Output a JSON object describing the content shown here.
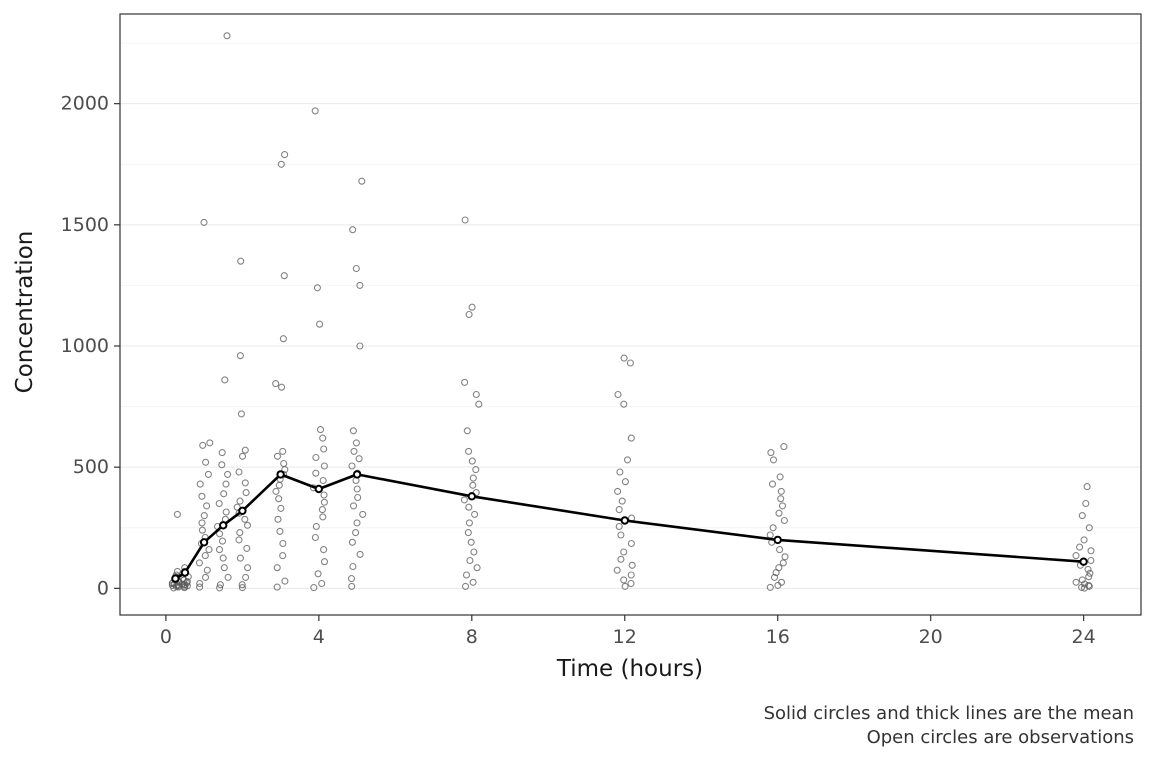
{
  "figure": {
    "y_axis_title": "Concentration",
    "x_axis_title": "Time (hours)",
    "caption_line1": "Solid circles and thick lines are the mean",
    "caption_line2": "Open circles are observations"
  },
  "chart_data": {
    "type": "scatter",
    "title": "",
    "xlabel": "Time (hours)",
    "ylabel": "Concentration",
    "xlim": [
      -1.2,
      25.5
    ],
    "ylim": [
      -110,
      2370
    ],
    "x_ticks": [
      0,
      4,
      8,
      12,
      16,
      20,
      24
    ],
    "y_ticks": [
      0,
      500,
      1000,
      1500,
      2000
    ],
    "grid": "horizontal major and minor, no vertical",
    "legend_position": "caption bottom-right",
    "annotations": [
      "Solid circles and thick lines are the mean",
      "Open circles are observations"
    ],
    "colors": {
      "mean_line": "#000000",
      "mean_marker_fill": "#ffffff",
      "observation_stroke": "#595959",
      "gridline_major": "#e9e9e9",
      "gridline_minor": "#f4f4f4",
      "panel_border": "#333333",
      "tick_mark": "#333333",
      "tick_label": "#4d4d4d"
    },
    "mean_series": {
      "name": "mean",
      "x": [
        0.25,
        0.5,
        1,
        1.5,
        2,
        3,
        4,
        5,
        8,
        12,
        16,
        24
      ],
      "y": [
        40,
        65,
        190,
        260,
        320,
        470,
        410,
        470,
        380,
        280,
        200,
        110
      ]
    },
    "observations": [
      {
        "time": 0.25,
        "values": [
          2,
          5,
          8,
          10,
          12,
          15,
          18,
          20,
          22,
          25,
          30,
          35,
          40,
          48,
          55,
          70,
          305
        ]
      },
      {
        "time": 0.5,
        "values": [
          3,
          6,
          10,
          14,
          15,
          18,
          22,
          28,
          34,
          40,
          48,
          58,
          70,
          85
        ]
      },
      {
        "time": 1,
        "values": [
          5,
          20,
          45,
          75,
          105,
          135,
          160,
          185,
          210,
          240,
          270,
          300,
          340,
          380,
          430,
          470,
          520,
          590,
          600,
          1510
        ]
      },
      {
        "time": 1.5,
        "values": [
          2,
          15,
          45,
          85,
          125,
          160,
          195,
          225,
          255,
          285,
          315,
          350,
          390,
          430,
          470,
          510,
          560,
          860,
          2280
        ]
      },
      {
        "time": 2,
        "values": [
          3,
          15,
          45,
          85,
          125,
          165,
          200,
          230,
          260,
          285,
          310,
          335,
          360,
          395,
          435,
          480,
          545,
          570,
          720,
          960,
          1350
        ]
      },
      {
        "time": 3,
        "values": [
          5,
          30,
          85,
          135,
          185,
          235,
          285,
          330,
          370,
          400,
          425,
          450,
          470,
          490,
          515,
          545,
          565,
          830,
          845,
          1030,
          1290,
          1750,
          1790
        ]
      },
      {
        "time": 4,
        "values": [
          3,
          20,
          60,
          110,
          160,
          210,
          255,
          295,
          325,
          355,
          385,
          415,
          445,
          475,
          505,
          540,
          575,
          620,
          655,
          1090,
          1240,
          1970
        ]
      },
      {
        "time": 5,
        "values": [
          8,
          40,
          90,
          140,
          190,
          230,
          270,
          305,
          340,
          375,
          410,
          445,
          475,
          505,
          535,
          565,
          600,
          650,
          1000,
          1250,
          1320,
          1480,
          1680
        ]
      },
      {
        "time": 8,
        "values": [
          8,
          25,
          55,
          85,
          115,
          150,
          190,
          230,
          270,
          305,
          335,
          365,
          395,
          425,
          455,
          490,
          525,
          565,
          650,
          760,
          800,
          850,
          1130,
          1160,
          1520
        ]
      },
      {
        "time": 12,
        "values": [
          8,
          20,
          35,
          55,
          75,
          95,
          120,
          150,
          185,
          220,
          255,
          290,
          325,
          360,
          400,
          440,
          480,
          530,
          620,
          760,
          800,
          930,
          950
        ]
      },
      {
        "time": 16,
        "values": [
          4,
          12,
          25,
          45,
          65,
          85,
          105,
          130,
          160,
          190,
          220,
          250,
          280,
          310,
          340,
          370,
          400,
          430,
          460,
          530,
          560,
          585
        ]
      },
      {
        "time": 24,
        "values": [
          1,
          4,
          8,
          12,
          18,
          25,
          35,
          48,
          62,
          78,
          95,
          115,
          135,
          155,
          170,
          200,
          250,
          300,
          350,
          420
        ]
      }
    ]
  }
}
